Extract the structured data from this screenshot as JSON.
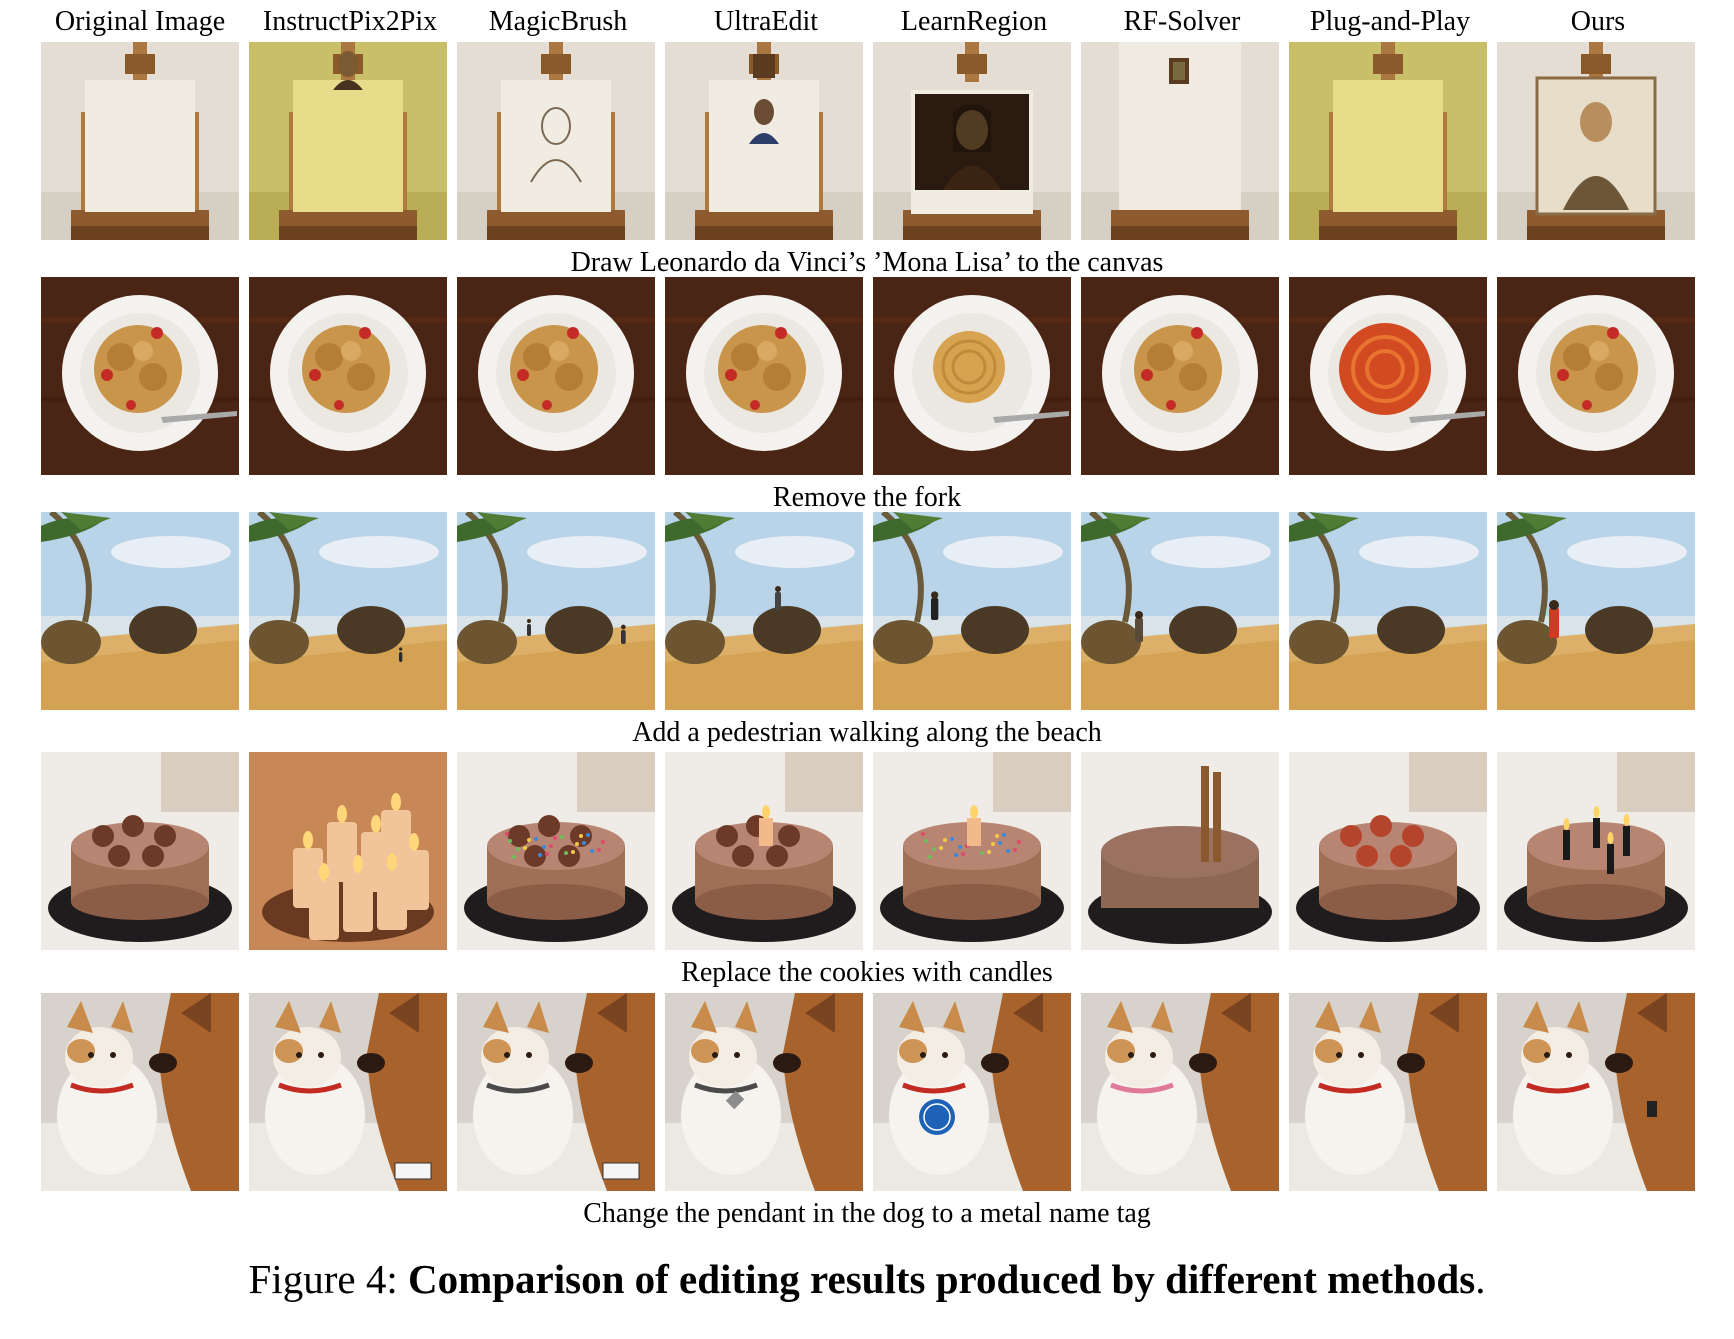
{
  "columns": [
    "Original Image",
    "InstructPix2Pix",
    "MagicBrush",
    "UltraEdit",
    "LearnRegion",
    "RF-Solver",
    "Plug-and-Play",
    "Ours"
  ],
  "rows": [
    {
      "caption": "Draw Leonardo da Vinci’s ’Mona Lisa’ to the canvas",
      "scene": "easel",
      "variants": [
        "blank",
        "yellow-face-top",
        "sketch",
        "small-portrait",
        "dark-painting",
        "tiny-frame",
        "yellow-blank",
        "framed-painting"
      ]
    },
    {
      "caption": "Remove the fork",
      "scene": "pasta",
      "variants": [
        "pasta-fork",
        "pasta",
        "pasta",
        "pasta",
        "spaghetti-fork",
        "pasta",
        "red-spaghetti-fork",
        "pasta"
      ]
    },
    {
      "caption": "Add a pedestrian walking along the beach",
      "scene": "beach",
      "variants": [
        "none",
        "small-person",
        "two-people",
        "person-on-rock",
        "person-left",
        "person-center",
        "none",
        "red-person"
      ]
    },
    {
      "caption": "Replace the cookies with candles",
      "scene": "cake",
      "variants": [
        "cookies",
        "candles-only",
        "cookies-sprinkles",
        "cookies-one-candle",
        "sprinkles-candle",
        "tall-candles",
        "cookies-red",
        "black-candles"
      ]
    },
    {
      "caption": "Change the pendant in the dog to a metal name tag",
      "scene": "pets",
      "variants": [
        "red-collar",
        "tag-card",
        "tag-card-small",
        "metal-tag",
        "blue-tag",
        "pink-collar",
        "red-collar",
        "black-tag"
      ]
    }
  ],
  "figure_caption": {
    "label": "Figure 4:",
    "title": "Comparison of editing results produced by different methods",
    "end": "."
  }
}
